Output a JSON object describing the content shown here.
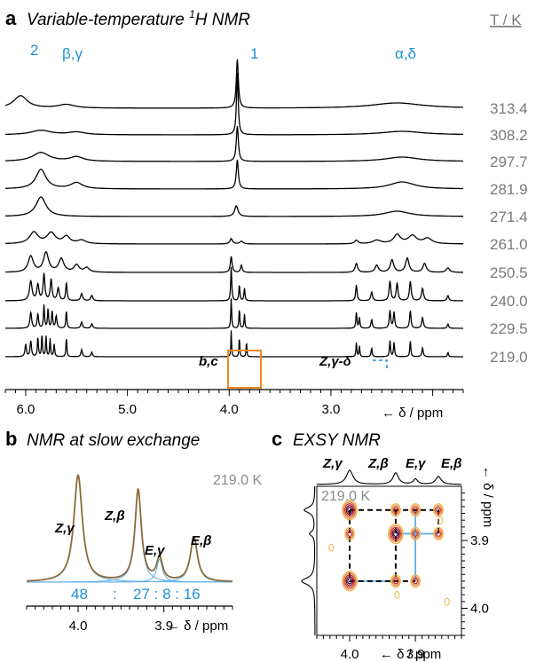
{
  "panel_a": {
    "letter": "a",
    "title_prefix": "Variable-temperature ",
    "title_sup": "1",
    "title_suffix": "H NMR",
    "temp_header": "T / K",
    "peak_labels": {
      "p2": "2",
      "beta_gamma": "β,γ",
      "p1": "1",
      "alpha_delta": "α,δ"
    },
    "annotations": {
      "bc": "b,c",
      "zgamma_delta": "Z,γ-δ"
    },
    "xlabel": "← δ / ppm",
    "xticks": [
      "6.0",
      "5.0",
      "4.0",
      "3.0"
    ]
  },
  "panel_b": {
    "letter": "b",
    "title": "NMR at slow exchange",
    "temp": "219.0 K",
    "peak_labels": [
      "Z,γ",
      "Z,β",
      "E,γ",
      "E,β"
    ],
    "ratio": [
      "48",
      ":",
      "27 : 8 : 16"
    ],
    "xticks": [
      "4.0",
      "3.9"
    ],
    "xlabel": "← δ / ppm"
  },
  "panel_c": {
    "letter": "c",
    "title": "EXSY NMR",
    "temp": "219.0 K",
    "peak_labels": [
      "Z,γ",
      "Z,β",
      "E,γ",
      "E,β"
    ],
    "xticks": [
      "4.0",
      "3.9"
    ],
    "yticks": [
      "3.9",
      "4.0"
    ],
    "xlabel": "← δ / ppm",
    "ylabel": "← δ / ppm"
  },
  "chart_data": [
    {
      "type": "line",
      "title": "Variable-temperature 1H NMR",
      "xlabel": "δ / ppm",
      "x_direction": "reversed",
      "xlim": [
        6.2,
        1.7
      ],
      "series_label": "T / K",
      "series": [
        {
          "name": "313.4",
          "peaks": [
            6.05,
            5.6,
            3.92,
            2.35
          ]
        },
        {
          "name": "308.2",
          "peaks": [
            5.85,
            5.5,
            3.92,
            2.3
          ]
        },
        {
          "name": "297.7",
          "peaks": [
            5.85,
            5.5,
            3.92,
            2.3
          ]
        },
        {
          "name": "281.9",
          "peaks": [
            5.85,
            5.5,
            3.92,
            2.3
          ]
        },
        {
          "name": "271.4",
          "peaks": [
            5.85,
            3.93,
            2.3
          ]
        },
        {
          "name": "261.0",
          "peaks": [
            5.85,
            5.7,
            3.98,
            2.35,
            2.2
          ]
        },
        {
          "name": "250.5",
          "peaks": [
            5.95,
            5.8,
            5.65,
            3.98,
            3.9,
            2.35,
            2.2
          ]
        },
        {
          "name": "240.0",
          "peaks": [
            5.95,
            5.8,
            5.6,
            3.98,
            3.88,
            2.75,
            2.35,
            2.2
          ]
        },
        {
          "name": "229.5",
          "peaks": [
            5.95,
            5.82,
            5.6,
            3.98,
            3.9,
            3.85,
            2.75,
            2.35,
            2.2
          ]
        },
        {
          "name": "219.0",
          "peaks": [
            5.95,
            5.82,
            5.6,
            3.98,
            3.9,
            3.83,
            2.75,
            2.35,
            2.2
          ]
        }
      ]
    },
    {
      "type": "line",
      "title": "NMR at slow exchange",
      "xlabel": "δ / ppm",
      "x_direction": "reversed",
      "xlim": [
        4.06,
        3.82
      ],
      "series": [
        {
          "name": "Z,γ",
          "peak": 4.0,
          "ratio": 48
        },
        {
          "name": "Z,β",
          "peak": 3.93,
          "ratio": 27
        },
        {
          "name": "E,γ",
          "peak": 3.905,
          "ratio": 8
        },
        {
          "name": "E,β",
          "peak": 3.865,
          "ratio": 16
        }
      ]
    },
    {
      "type": "heatmap",
      "title": "EXSY NMR",
      "xlabel": "δ / ppm",
      "ylabel": "δ / ppm",
      "xlim": [
        4.05,
        3.83
      ],
      "ylim": [
        3.82,
        4.04
      ],
      "cross_peaks": [
        {
          "x": 4.0,
          "y": 3.855
        },
        {
          "x": 3.93,
          "y": 3.855
        },
        {
          "x": 3.9,
          "y": 3.855
        },
        {
          "x": 3.865,
          "y": 3.855
        },
        {
          "x": 4.0,
          "y": 3.89
        },
        {
          "x": 3.93,
          "y": 3.89
        },
        {
          "x": 3.9,
          "y": 3.89
        },
        {
          "x": 3.865,
          "y": 3.89
        },
        {
          "x": 4.0,
          "y": 3.96
        },
        {
          "x": 3.93,
          "y": 3.96
        },
        {
          "x": 3.9,
          "y": 3.96
        }
      ]
    }
  ]
}
